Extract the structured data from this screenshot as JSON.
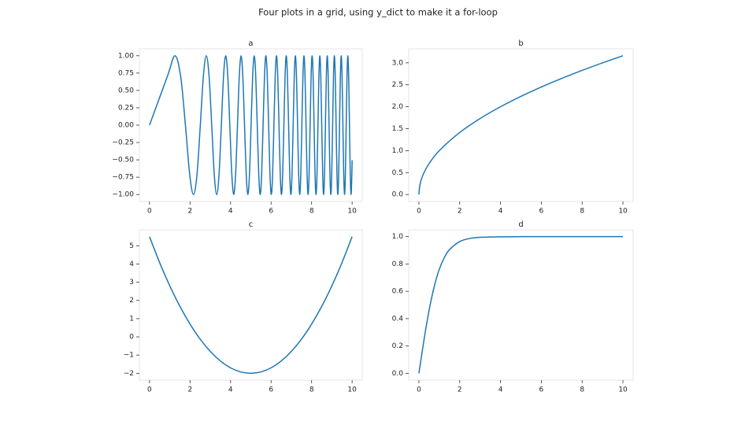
{
  "title": "Four plots in a grid, using y_dict to make it a for-loop",
  "chart_data": [
    {
      "type": "line",
      "title": "a",
      "color": "#1f77b4",
      "x": [
        0,
        0.886,
        1.253,
        1.535,
        1.772,
        1.982,
        2.171,
        2.345,
        2.507,
        2.659,
        2.802,
        2.939,
        3.07,
        3.195,
        3.316,
        3.432,
        3.545,
        3.654,
        3.76,
        3.863,
        3.963,
        4.061,
        4.157,
        4.25,
        4.342,
        4.431,
        4.519,
        4.605,
        4.69,
        4.773,
        4.854,
        4.934,
        5.013,
        5.091,
        5.168,
        5.243,
        5.317,
        5.391,
        5.463,
        5.534,
        5.605,
        5.675,
        5.743,
        5.811,
        5.879,
        5.945,
        6.011,
        6.076,
        6.14,
        6.204,
        6.267,
        6.329,
        6.391,
        6.452,
        6.512,
        6.572,
        6.632,
        6.691,
        6.749,
        6.807,
        6.865,
        6.922,
        6.978,
        7.034,
        7.09,
        7.145,
        7.2,
        7.254,
        7.308,
        7.362,
        7.415,
        7.467,
        7.52,
        7.572,
        7.624,
        7.675,
        7.726,
        7.777,
        7.827,
        7.877,
        7.927,
        7.976,
        8.025,
        8.074,
        8.122,
        8.17,
        8.219,
        8.266,
        8.314,
        8.361,
        8.407,
        8.454,
        8.5,
        8.547,
        8.592,
        8.638,
        8.683,
        8.728,
        8.773,
        8.818,
        8.862,
        8.906,
        8.95,
        8.994,
        9.038,
        9.081,
        9.124,
        9.167,
        9.21,
        9.252,
        9.295,
        9.337,
        9.379,
        9.421,
        9.462,
        9.504,
        9.545,
        9.586,
        9.627,
        9.668,
        9.708,
        9.748,
        9.789,
        9.829,
        9.869,
        9.908,
        9.948,
        9.987,
        10
      ],
      "values": [
        0,
        0.707,
        1,
        0.707,
        0,
        -0.707,
        -1,
        -0.707,
        0,
        0.707,
        1,
        0.707,
        0,
        -0.707,
        -1,
        -0.707,
        0,
        0.707,
        1,
        0.707,
        0,
        -0.707,
        -1,
        -0.707,
        0,
        0.707,
        1,
        0.707,
        0,
        -0.707,
        -1,
        -0.707,
        0,
        0.707,
        1,
        0.707,
        0,
        -0.707,
        -1,
        -0.707,
        0,
        0.707,
        1,
        0.707,
        0,
        -0.707,
        -1,
        -0.707,
        0,
        0.707,
        1,
        0.707,
        0,
        -0.707,
        -1,
        -0.707,
        0,
        0.707,
        1,
        0.707,
        0,
        -0.707,
        -1,
        -0.707,
        0,
        0.707,
        1,
        0.707,
        0,
        -0.707,
        -1,
        -0.707,
        0,
        0.707,
        1,
        0.707,
        0,
        -0.707,
        -1,
        -0.707,
        0,
        0.707,
        1,
        0.707,
        0,
        -0.707,
        -1,
        -0.707,
        0,
        0.707,
        1,
        0.707,
        0,
        -0.707,
        -1,
        -0.707,
        0,
        0.707,
        1,
        0.707,
        0,
        -0.707,
        -1,
        -0.707,
        0,
        0.707,
        1,
        0.707,
        0,
        -0.707,
        -1,
        -0.707,
        0,
        0.707,
        1,
        0.707,
        0,
        -0.707,
        -1,
        -0.707,
        0,
        0.707,
        1,
        0.707,
        0,
        -0.707,
        -1,
        -0.707,
        -0.506
      ],
      "xlim": [
        -0.5,
        10.5
      ],
      "ylim": [
        -1.1,
        1.1
      ],
      "xticks": [
        0,
        2,
        4,
        6,
        8,
        10
      ],
      "yticks": [
        {
          "value": -1,
          "label": "−1.00"
        },
        {
          "value": -0.75,
          "label": "−0.75"
        },
        {
          "value": -0.5,
          "label": "−0.50"
        },
        {
          "value": -0.25,
          "label": "−0.25"
        },
        {
          "value": 0,
          "label": "0.00"
        },
        {
          "value": 0.25,
          "label": "0.25"
        },
        {
          "value": 0.5,
          "label": "0.50"
        },
        {
          "value": 0.75,
          "label": "0.75"
        },
        {
          "value": 1,
          "label": "1.00"
        }
      ]
    },
    {
      "type": "line",
      "title": "b",
      "color": "#1f77b4",
      "x": [
        0,
        0.05,
        0.2,
        0.5,
        1,
        2,
        3,
        4,
        5,
        6,
        7,
        8,
        9,
        10
      ],
      "values": [
        0,
        0.224,
        0.447,
        0.707,
        1,
        1.414,
        1.732,
        2,
        2.236,
        2.449,
        2.646,
        2.828,
        3,
        3.162
      ],
      "xlim": [
        -0.5,
        10.5
      ],
      "ylim": [
        -0.158,
        3.32
      ],
      "xticks": [
        0,
        2,
        4,
        6,
        8,
        10
      ],
      "yticks": [
        {
          "value": 0,
          "label": "0.0"
        },
        0.5,
        {
          "value": 1,
          "label": "1.0"
        },
        1.5,
        {
          "value": 2,
          "label": "2.0"
        },
        2.5,
        {
          "value": 3,
          "label": "3.0"
        }
      ]
    },
    {
      "type": "line",
      "title": "c",
      "color": "#1f77b4",
      "x": [
        0,
        0.5,
        1,
        1.5,
        2,
        2.5,
        3,
        3.5,
        4,
        4.5,
        5,
        5.5,
        6,
        6.5,
        7,
        7.5,
        8,
        8.5,
        9,
        9.5,
        10
      ],
      "values": [
        5.5,
        4.075,
        2.8,
        1.675,
        0.7,
        -0.125,
        -0.8,
        -1.325,
        -1.7,
        -1.925,
        -2,
        -1.925,
        -1.7,
        -1.325,
        -0.8,
        -0.125,
        0.7,
        1.675,
        2.8,
        4.075,
        5.5
      ],
      "xlim": [
        -0.5,
        10.5
      ],
      "ylim": [
        -2.375,
        5.875
      ],
      "xticks": [
        0,
        2,
        4,
        6,
        8,
        10
      ],
      "yticks": [
        {
          "value": -2,
          "label": "−2"
        },
        {
          "value": -1,
          "label": "−1"
        },
        0,
        1,
        2,
        3,
        4,
        5
      ]
    },
    {
      "type": "line",
      "title": "d",
      "color": "#1f77b4",
      "x": [
        0,
        0.25,
        0.5,
        0.75,
        1,
        1.25,
        1.5,
        2,
        2.5,
        3,
        4,
        5,
        6,
        8,
        10
      ],
      "values": [
        0,
        0.245,
        0.462,
        0.635,
        0.762,
        0.848,
        0.905,
        0.964,
        0.987,
        0.995,
        0.999,
        1,
        1,
        1,
        1
      ],
      "xlim": [
        -0.5,
        10.5
      ],
      "ylim": [
        -0.05,
        1.05
      ],
      "xticks": [
        0,
        2,
        4,
        6,
        8,
        10
      ],
      "yticks": [
        {
          "value": 0,
          "label": "0.0"
        },
        0.2,
        0.4,
        0.6,
        0.8,
        {
          "value": 1,
          "label": "1.0"
        }
      ]
    }
  ]
}
